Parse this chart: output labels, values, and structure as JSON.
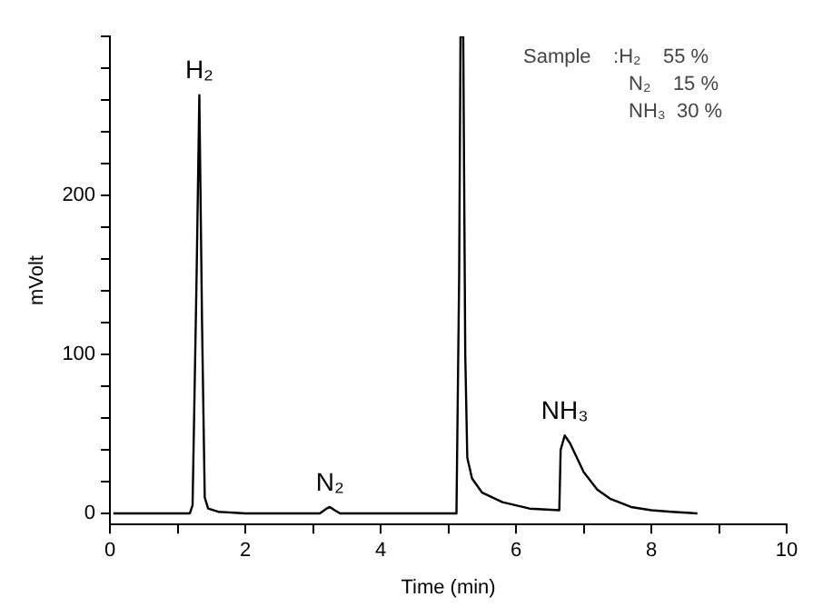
{
  "chart_data": {
    "type": "line",
    "xlabel": "Time (min)",
    "ylabel": "mVolt",
    "xlim": [
      0,
      10
    ],
    "xticks": [
      0,
      {
        "value": 1,
        "label": null
      },
      2,
      {
        "value": 3,
        "label": null
      },
      4,
      {
        "value": 5,
        "label": null
      },
      6,
      {
        "value": 7,
        "label": null
      },
      8,
      {
        "value": 9,
        "label": null
      },
      10
    ],
    "ylim": [
      -7,
      300
    ],
    "yticks": [
      0,
      {
        "value": 20,
        "label": null
      },
      {
        "value": 40,
        "label": null
      },
      {
        "value": 60,
        "label": null
      },
      {
        "value": 80,
        "label": null
      },
      100,
      {
        "value": 120,
        "label": null
      },
      {
        "value": 140,
        "label": null
      },
      {
        "value": 160,
        "label": null
      },
      {
        "value": 180,
        "label": null
      },
      200,
      {
        "value": 220,
        "label": null
      },
      {
        "value": 240,
        "label": null
      },
      {
        "value": 260,
        "label": null
      },
      {
        "value": 280,
        "label": null
      },
      {
        "value": 300,
        "label": null
      }
    ],
    "grid": false,
    "legend": false,
    "marker": "none",
    "line_style": "solid",
    "series": [
      {
        "color": "#000000",
        "x": [
          0.05,
          1.18,
          1.22,
          1.28,
          1.32,
          1.36,
          1.4,
          1.45,
          1.6,
          2,
          3.1,
          3.2,
          3.25,
          3.32,
          3.4,
          5.12,
          5.16,
          5.18,
          5.22,
          5.25,
          5.28,
          5.35,
          5.5,
          5.8,
          6.2,
          6.64,
          6.66,
          6.72,
          6.8,
          6.9,
          7,
          7.2,
          7.4,
          7.7,
          8,
          8.3,
          8.68
        ],
        "values": [
          0,
          0,
          5,
          150,
          263,
          120,
          10,
          3,
          1,
          0,
          0,
          3,
          4,
          2,
          0,
          0,
          150,
          300,
          300,
          100,
          35,
          22,
          13,
          7,
          3,
          2,
          40,
          49,
          44,
          35,
          26,
          15,
          9,
          4,
          2,
          1,
          0
        ]
      }
    ],
    "annotations": [
      {
        "text": "H₂",
        "x": 1.32,
        "y": 263
      },
      {
        "text": "N₂",
        "x": 3.25,
        "y": 4
      },
      {
        "text": "NH₃",
        "x": 6.72,
        "y": 49
      },
      "Sample    :H₂    55 %",
      "N₂    15 %",
      "NH₃  30 %"
    ]
  }
}
